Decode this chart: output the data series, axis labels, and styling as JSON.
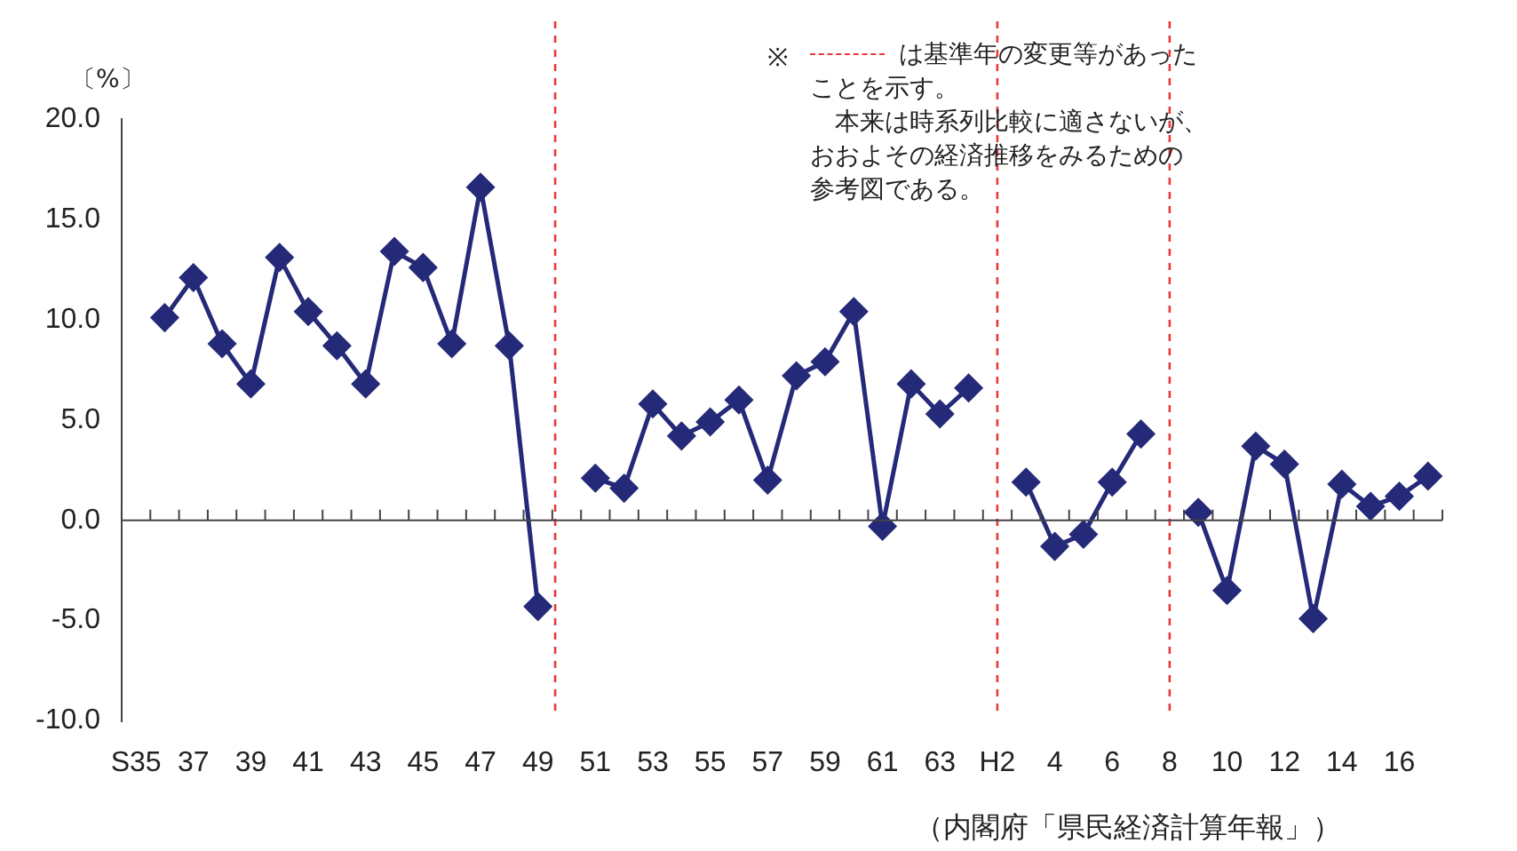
{
  "chart_data": {
    "type": "line",
    "ylabel": "〔%〕",
    "color": "#252a78",
    "marker": "diamond",
    "categories": [
      "S35",
      null,
      "37",
      null,
      "39",
      null,
      "41",
      null,
      "43",
      null,
      "45",
      null,
      "47",
      null,
      "49",
      null,
      "51",
      null,
      "53",
      null,
      "55",
      null,
      "57",
      null,
      "59",
      null,
      "61",
      null,
      "63",
      null,
      "H2",
      null,
      "4",
      null,
      "6",
      null,
      "8",
      null,
      "10",
      null,
      "12",
      null,
      "14",
      null,
      "16",
      null
    ],
    "values": [
      null,
      10.1,
      12.1,
      8.8,
      6.8,
      13.1,
      10.4,
      8.7,
      6.8,
      13.4,
      12.6,
      8.8,
      16.6,
      8.7,
      -4.3,
      null,
      2.1,
      1.6,
      5.8,
      4.2,
      4.9,
      6.0,
      2.0,
      7.2,
      7.9,
      10.4,
      -0.3,
      6.8,
      5.3,
      6.6,
      null,
      1.9,
      -1.3,
      -0.7,
      1.9,
      4.3,
      null,
      0.4,
      -3.5,
      3.7,
      2.8,
      -4.9,
      1.8,
      0.7,
      1.2,
      2.2
    ],
    "ylim": [
      -10,
      20
    ],
    "yticks": [
      {
        "value": -10,
        "label": "-10.0"
      },
      {
        "value": -5,
        "label": "-5.0"
      },
      {
        "value": 0,
        "label": "0.0"
      },
      {
        "value": 5,
        "label": "5.0"
      },
      {
        "value": 10,
        "label": "10.0"
      },
      {
        "value": 15,
        "label": "15.0"
      },
      {
        "value": 20,
        "label": "20.0"
      }
    ],
    "ref_lines": [
      {
        "axis": "x",
        "value": "H2",
        "color": "#e8393a",
        "line_style": "dashed"
      },
      {
        "axis": "x",
        "value": "8",
        "color": "#e8393a",
        "line_style": "dashed"
      }
    ],
    "annotations": [
      "※",
      "は基準年の変更等があった",
      "ことを示す。",
      "　本来は時系列比較に適さないが、",
      "おおよその経済推移をみるための",
      "参考図である。",
      "（内閣府「県民経済計算年報」）"
    ]
  }
}
